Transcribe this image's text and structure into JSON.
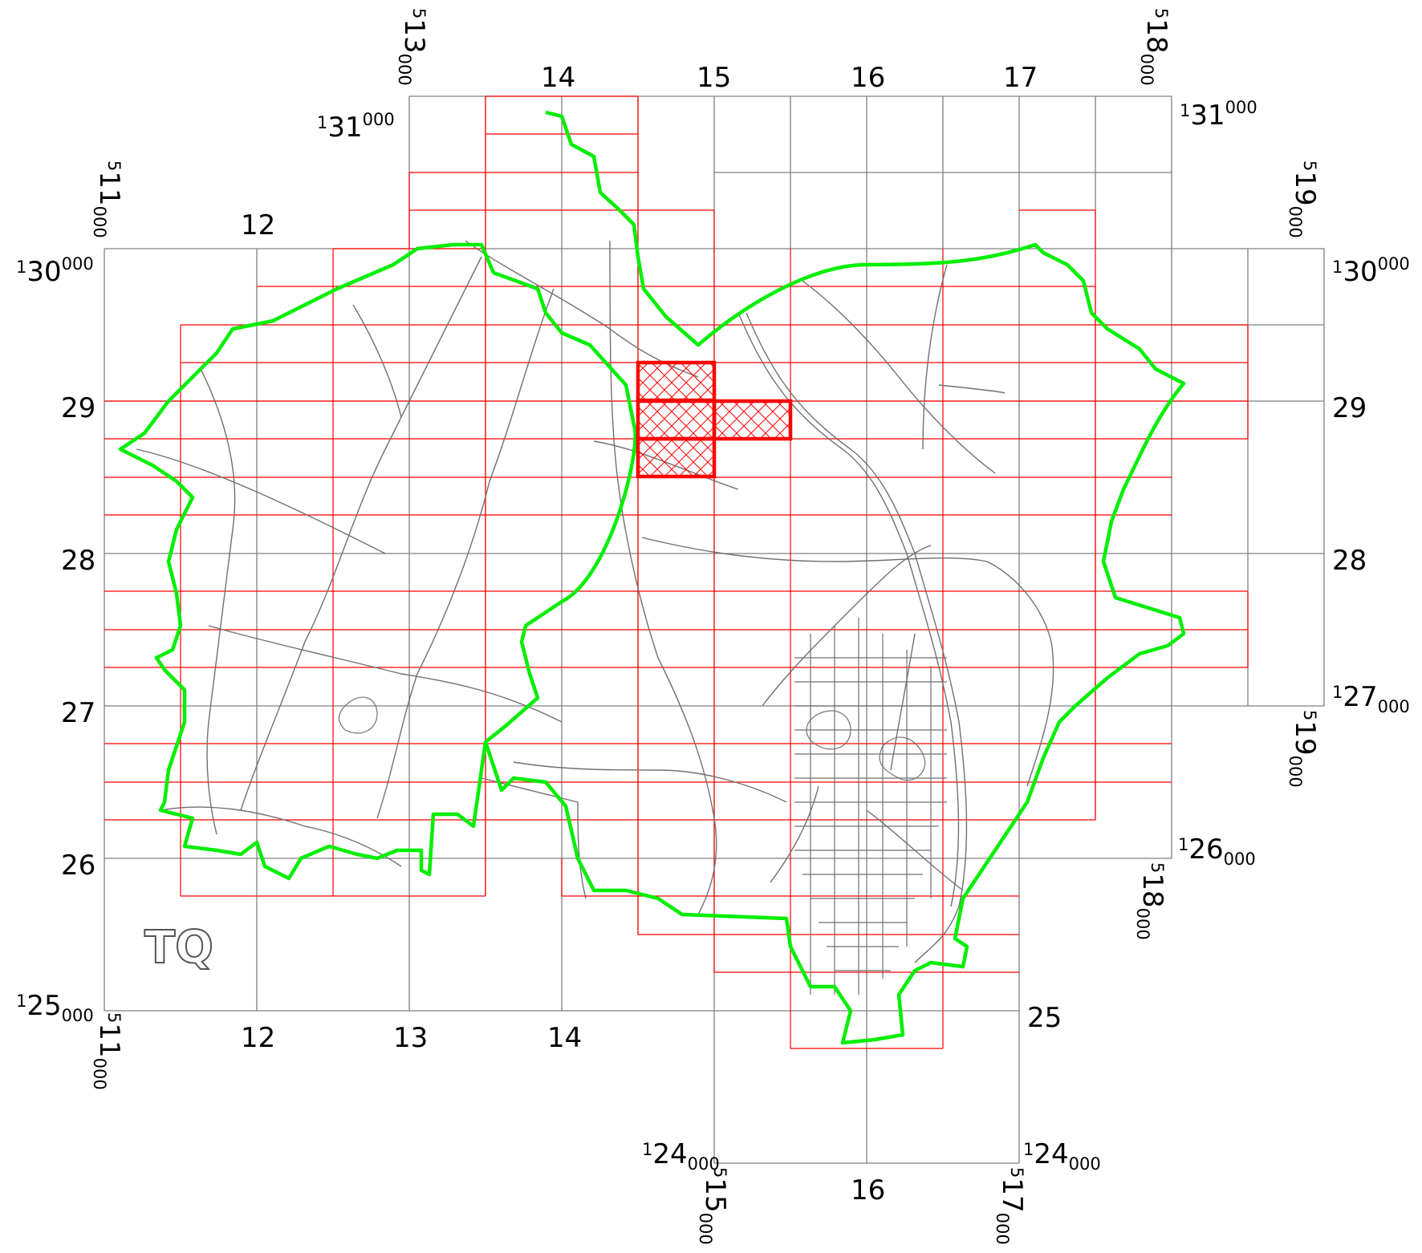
{
  "map": {
    "grid_square": "TQ",
    "colors": {
      "background": "#ffffff",
      "grid_km": "#808080",
      "tiles": "#ff0000",
      "boundary": "#00ee00",
      "roads": "#707070",
      "highlight": "#ff0000"
    },
    "km_labels": {
      "top": [
        "14",
        "15",
        "16",
        "17"
      ],
      "top_left": "12",
      "bottom": [
        "12",
        "13",
        "14"
      ],
      "bottom_center": "16",
      "left": [
        "29",
        "28",
        "27",
        "26"
      ],
      "right": [
        "29",
        "28"
      ],
      "right_low": "25"
    },
    "corner_labels": [
      {
        "pre": "5",
        "main": "13",
        "suf": "000",
        "rot": true
      },
      {
        "pre": "5",
        "main": "18",
        "suf": "000",
        "rot": true
      },
      {
        "pre": "1",
        "main": "31",
        "suf": "000",
        "rot": false,
        "sup": true
      },
      {
        "pre": "1",
        "main": "31",
        "suf": "000",
        "rot": false,
        "sup": true
      },
      {
        "pre": "5",
        "main": "11",
        "suf": "000",
        "rot": true
      },
      {
        "pre": "5",
        "main": "19",
        "suf": "000",
        "rot": true
      },
      {
        "pre": "1",
        "main": "30",
        "suf": "000",
        "rot": false,
        "sup": true
      },
      {
        "pre": "1",
        "main": "30",
        "suf": "000",
        "rot": false,
        "sup": true
      },
      {
        "pre": "1",
        "main": "27",
        "suf": "000",
        "rot": false,
        "sup": false
      },
      {
        "pre": "5",
        "main": "19",
        "suf": "000",
        "rot": true
      },
      {
        "pre": "1",
        "main": "26",
        "suf": "000",
        "rot": false,
        "sup": false
      },
      {
        "pre": "5",
        "main": "18",
        "suf": "000",
        "rot": true
      },
      {
        "pre": "1",
        "main": "25",
        "suf": "000",
        "rot": false,
        "sup": false
      },
      {
        "pre": "5",
        "main": "11",
        "suf": "000",
        "rot": true
      },
      {
        "pre": "1",
        "main": "24",
        "suf": "000",
        "rot": false,
        "sup": false
      },
      {
        "pre": "1",
        "main": "24",
        "suf": "000",
        "rot": false,
        "sup": false
      },
      {
        "pre": "5",
        "main": "15",
        "suf": "000",
        "rot": true
      },
      {
        "pre": "5",
        "main": "17",
        "suf": "000",
        "rot": true
      }
    ]
  }
}
